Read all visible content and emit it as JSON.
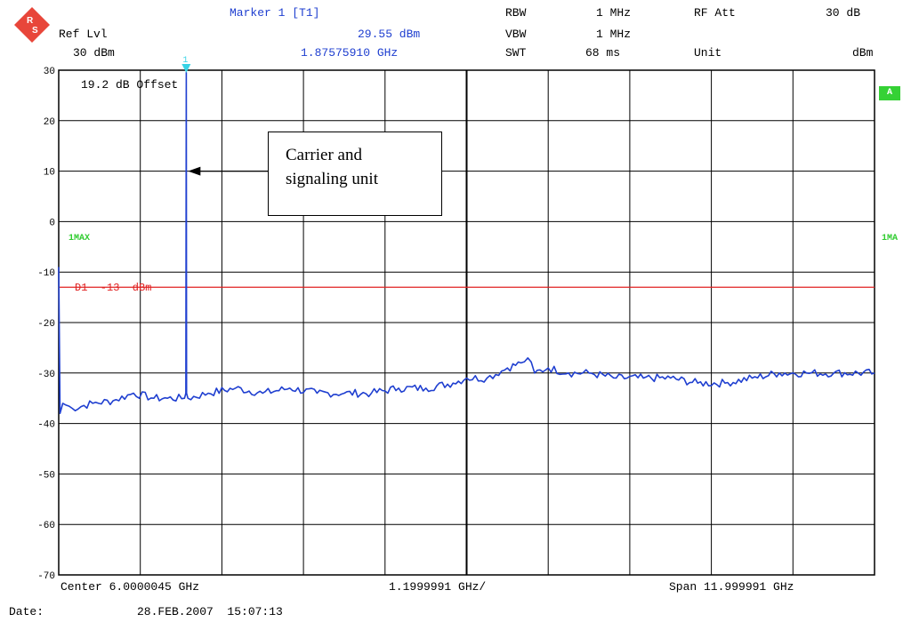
{
  "header": {
    "marker_title": "Marker 1 [T1]",
    "ref_lvl_label": "Ref Lvl",
    "ref_lvl_value": "30 dBm",
    "marker_level": "29.55 dBm",
    "marker_freq": "1.87575910 GHz",
    "rbw_label": "RBW",
    "rbw_value": "1 MHz",
    "vbw_label": "VBW",
    "vbw_value": "1 MHz",
    "swt_label": "SWT",
    "swt_value": "68 ms",
    "rfatt_label": "RF Att",
    "rfatt_value": "30 dB",
    "unit_label": "Unit",
    "unit_value": "dBm"
  },
  "plot": {
    "offset_text": "19.2 dB Offset",
    "trace_label_left": "1MAX",
    "trace_label_right": "1MA",
    "display_line_label": "D1  -13  dBm",
    "badge": "A",
    "marker_number": "1",
    "annotation_line1": "Carrier and",
    "annotation_line2": "signaling  unit"
  },
  "footer": {
    "center": "Center 6.0000045 GHz",
    "per_div": "1.1999991 GHz/",
    "span": "Span 11.999991 GHz",
    "date_label": "Date:",
    "date_value": "28.FEB.2007  15:07:13"
  },
  "colors": {
    "trace": "#1f3fd0",
    "display_line": "#e02020",
    "grid": "#000000",
    "marker": "#37d3e6",
    "label_green": "#2ecc2e"
  },
  "chart_data": {
    "type": "line",
    "xlabel": "",
    "ylabel": "",
    "xlim": [
      0.0,
      12.0
    ],
    "ylim": [
      -70,
      30
    ],
    "yticks": [
      30,
      20,
      10,
      0,
      -10,
      -20,
      -30,
      -40,
      -50,
      -60,
      -70
    ],
    "grid": true,
    "display_line": {
      "name": "D1",
      "value": -13
    },
    "marker": {
      "x": 1.876,
      "y": 29.55
    },
    "series": [
      {
        "x": [
          0.0,
          0.02,
          0.06,
          0.2,
          0.5,
          0.8,
          1.1,
          1.4,
          1.6,
          1.85,
          1.87,
          1.876,
          1.88,
          1.9,
          2.2,
          2.6,
          3.0,
          3.4,
          3.8,
          4.2,
          4.6,
          5.0,
          5.4,
          5.8,
          6.0,
          6.3,
          6.6,
          6.8,
          6.9,
          7.0,
          7.2,
          7.5,
          7.8,
          8.2,
          8.6,
          9.0,
          9.4,
          9.8,
          10.2,
          10.6,
          11.0,
          11.4,
          12.0
        ],
        "y": [
          -9,
          -38,
          -36,
          -37,
          -36,
          -35.5,
          -34,
          -35,
          -35,
          -35,
          -34,
          29.55,
          -34,
          -35,
          -34,
          -33,
          -34,
          -33,
          -34,
          -34,
          -34,
          -33,
          -33,
          -32,
          -31,
          -31,
          -29,
          -28,
          -27,
          -30,
          -29,
          -30,
          -30,
          -31,
          -31,
          -31,
          -32,
          -32,
          -31,
          -30,
          -30,
          -30,
          -30
        ]
      }
    ]
  }
}
